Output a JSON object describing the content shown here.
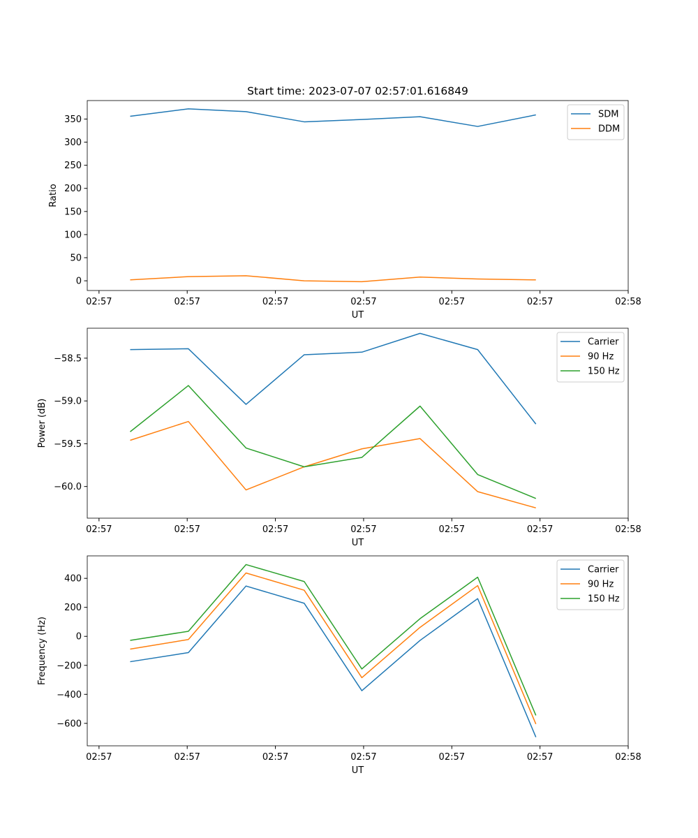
{
  "figure_title": "Start time: 2023-07-07 02:57:01.616849",
  "chart_data": [
    {
      "type": "line",
      "id": "ratio",
      "title": "Start time: 2023-07-07 02:57:01.616849",
      "xlabel": "UT",
      "ylabel": "Ratio",
      "xlim": [
        0,
        9.2
      ],
      "ylim": [
        -21,
        390
      ],
      "x": [
        0.73,
        1.72,
        2.7,
        3.69,
        4.67,
        5.66,
        6.64,
        7.63
      ],
      "xticks": [
        0.2,
        1.7,
        3.2,
        4.7,
        6.2,
        7.7,
        9.2
      ],
      "xtick_labels": [
        "02:57",
        "02:57",
        "02:57",
        "02:57",
        "02:57",
        "02:57",
        "02:58"
      ],
      "yticks": [
        0,
        50,
        100,
        150,
        200,
        250,
        300,
        350
      ],
      "ytick_labels": [
        "0",
        "50",
        "100",
        "150",
        "200",
        "250",
        "300",
        "350"
      ],
      "legend_position": "top-right",
      "series": [
        {
          "name": "SDM",
          "color": "#1f77b4",
          "values": [
            356,
            372,
            366,
            344,
            349,
            355,
            334,
            359
          ]
        },
        {
          "name": "DDM",
          "color": "#ff7f0e",
          "values": [
            2,
            9,
            11,
            0,
            -2,
            8,
            4,
            2
          ]
        }
      ]
    },
    {
      "type": "line",
      "id": "power",
      "xlabel": "UT",
      "ylabel": "Power (dB)",
      "xlim": [
        0,
        9.2
      ],
      "ylim": [
        -60.37,
        -58.15
      ],
      "x": [
        0.73,
        1.72,
        2.7,
        3.69,
        4.67,
        5.66,
        6.64,
        7.63
      ],
      "xticks": [
        0.2,
        1.7,
        3.2,
        4.7,
        6.2,
        7.7,
        9.2
      ],
      "xtick_labels": [
        "02:57",
        "02:57",
        "02:57",
        "02:57",
        "02:57",
        "02:57",
        "02:58"
      ],
      "yticks": [
        -60.0,
        -59.5,
        -59.0,
        -58.5
      ],
      "ytick_labels": [
        "−60.0",
        "−59.5",
        "−59.0",
        "−58.5"
      ],
      "legend_position": "top-right",
      "series": [
        {
          "name": "Carrier",
          "color": "#1f77b4",
          "values": [
            -58.4,
            -58.39,
            -59.04,
            -58.46,
            -58.43,
            -58.21,
            -58.4,
            -59.27
          ]
        },
        {
          "name": "90 Hz",
          "color": "#ff7f0e",
          "values": [
            -59.46,
            -59.24,
            -60.04,
            -59.77,
            -59.56,
            -59.44,
            -60.06,
            -60.25
          ]
        },
        {
          "name": "150 Hz",
          "color": "#2ca02c",
          "values": [
            -59.36,
            -58.82,
            -59.55,
            -59.77,
            -59.66,
            -59.06,
            -59.86,
            -60.14
          ]
        }
      ]
    },
    {
      "type": "line",
      "id": "frequency",
      "xlabel": "UT",
      "ylabel": "Frequency (Hz)",
      "xlim": [
        0,
        9.2
      ],
      "ylim": [
        -755,
        555
      ],
      "x": [
        0.73,
        1.72,
        2.7,
        3.69,
        4.67,
        5.66,
        6.64,
        7.63
      ],
      "xticks": [
        0.2,
        1.7,
        3.2,
        4.7,
        6.2,
        7.7,
        9.2
      ],
      "xtick_labels": [
        "02:57",
        "02:57",
        "02:57",
        "02:57",
        "02:57",
        "02:57",
        "02:58"
      ],
      "yticks": [
        -600,
        -400,
        -200,
        0,
        200,
        400
      ],
      "ytick_labels": [
        "−600",
        "−400",
        "−200",
        "0",
        "200",
        "400"
      ],
      "legend_position": "top-right",
      "series": [
        {
          "name": "Carrier",
          "color": "#1f77b4",
          "values": [
            -175,
            -112,
            347,
            228,
            -375,
            -28,
            260,
            -695
          ]
        },
        {
          "name": "90 Hz",
          "color": "#ff7f0e",
          "values": [
            -88,
            -22,
            437,
            318,
            -285,
            62,
            350,
            -605
          ]
        },
        {
          "name": "150 Hz",
          "color": "#2ca02c",
          "values": [
            -28,
            35,
            495,
            378,
            -225,
            122,
            408,
            -545
          ]
        }
      ]
    }
  ]
}
